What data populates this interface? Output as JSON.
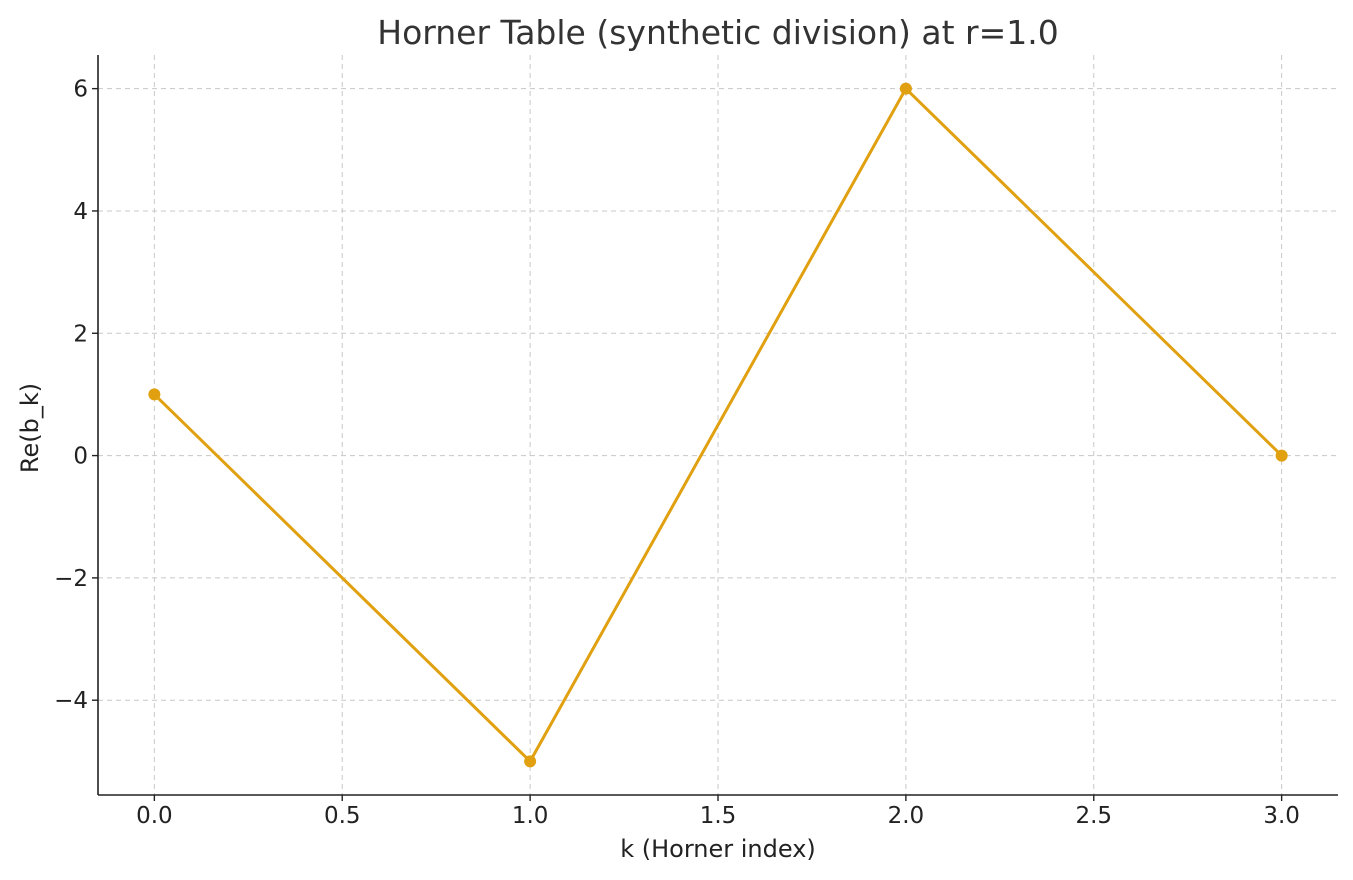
{
  "chart_data": {
    "type": "line",
    "title": "Horner Table (synthetic division) at r=1.0",
    "xlabel": "k (Horner index)",
    "ylabel": "Re(b_k)",
    "x": [
      0,
      1,
      2,
      3
    ],
    "series": [
      {
        "values": [
          1,
          -5,
          6,
          0
        ],
        "color": "#E0A010"
      }
    ],
    "xlim": [
      -0.15,
      3.15
    ],
    "ylim": [
      -5.55,
      6.55
    ],
    "xticks": [
      0.0,
      0.5,
      1.0,
      1.5,
      2.0,
      2.5,
      3.0
    ],
    "xtick_labels": [
      "0.0",
      "0.5",
      "1.0",
      "1.5",
      "2.0",
      "2.5",
      "3.0"
    ],
    "yticks": [
      -4,
      -2,
      0,
      2,
      4,
      6
    ],
    "ytick_labels": [
      "−4",
      "−2",
      "0",
      "2",
      "4",
      "6"
    ],
    "grid": true,
    "legend": "none"
  }
}
